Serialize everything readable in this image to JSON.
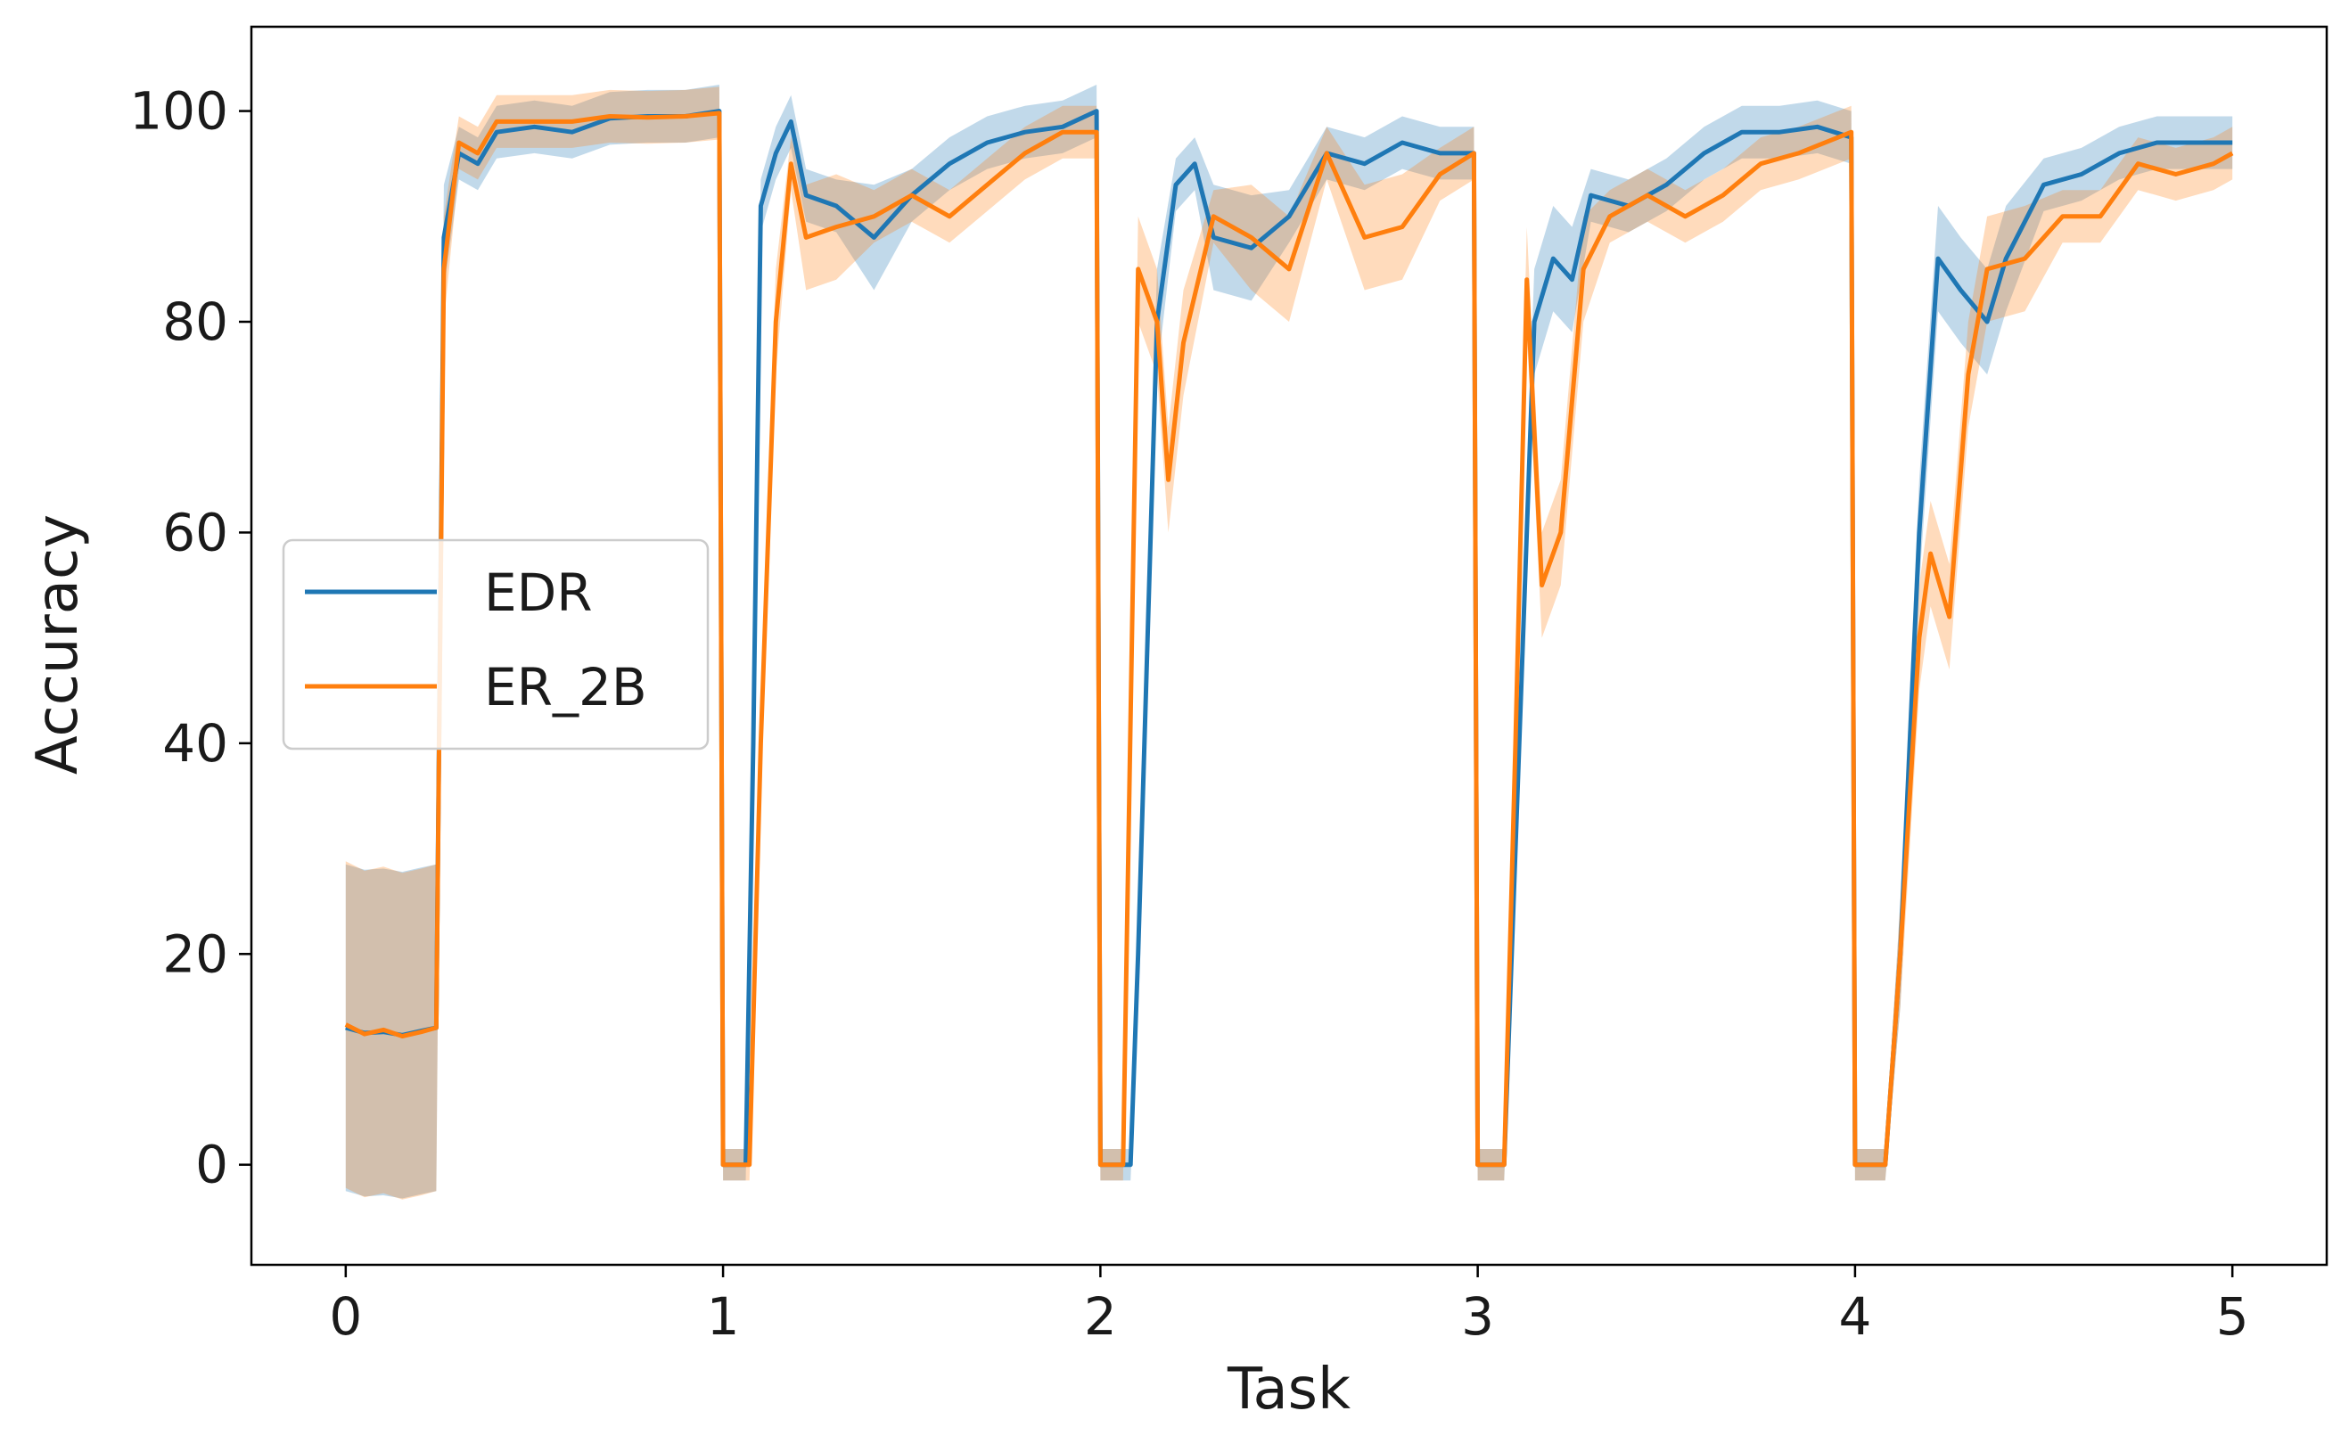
{
  "chart_data": {
    "type": "line",
    "title": "",
    "xlabel": "Task",
    "ylabel": "Accuracy",
    "xlim": [
      -0.25,
      5.25
    ],
    "ylim": [
      -9.5,
      108
    ],
    "xticks": [
      0,
      1,
      2,
      3,
      4,
      5
    ],
    "xtick_labels": [
      "0",
      "1",
      "2",
      "3",
      "4",
      "5"
    ],
    "yticks": [
      0,
      20,
      40,
      60,
      80,
      100
    ],
    "ytick_labels": [
      "0",
      "20",
      "40",
      "60",
      "80",
      "100"
    ],
    "grid": false,
    "legend": {
      "placement": "center-left",
      "entries": [
        "EDR",
        "ER_2B"
      ]
    },
    "series": [
      {
        "name": "EDR",
        "color": "#1f77b4",
        "points": [
          [
            0,
            13
          ],
          [
            0.05,
            12.5
          ],
          [
            0.1,
            12.6
          ],
          [
            0.15,
            12.3
          ],
          [
            0.2,
            12.7
          ],
          [
            0.24,
            13
          ],
          [
            0.26,
            88
          ],
          [
            0.3,
            96
          ],
          [
            0.35,
            95
          ],
          [
            0.4,
            98
          ],
          [
            0.5,
            98.5
          ],
          [
            0.6,
            98
          ],
          [
            0.7,
            99.3
          ],
          [
            0.8,
            99.5
          ],
          [
            0.9,
            99.5
          ],
          [
            0.99,
            100
          ],
          [
            1.0,
            0
          ],
          [
            1.06,
            0
          ],
          [
            1.08,
            40
          ],
          [
            1.1,
            91
          ],
          [
            1.14,
            96
          ],
          [
            1.18,
            99
          ],
          [
            1.22,
            92
          ],
          [
            1.3,
            91
          ],
          [
            1.4,
            88
          ],
          [
            1.5,
            92
          ],
          [
            1.6,
            95
          ],
          [
            1.7,
            97
          ],
          [
            1.8,
            98
          ],
          [
            1.9,
            98.5
          ],
          [
            1.99,
            100
          ],
          [
            2.0,
            0
          ],
          [
            2.08,
            0
          ],
          [
            2.1,
            20
          ],
          [
            2.15,
            80
          ],
          [
            2.2,
            93
          ],
          [
            2.25,
            95
          ],
          [
            2.3,
            88
          ],
          [
            2.4,
            87
          ],
          [
            2.5,
            90
          ],
          [
            2.6,
            96
          ],
          [
            2.7,
            95
          ],
          [
            2.8,
            97
          ],
          [
            2.9,
            96
          ],
          [
            2.99,
            96
          ],
          [
            3.0,
            0
          ],
          [
            3.07,
            0
          ],
          [
            3.1,
            30
          ],
          [
            3.15,
            80
          ],
          [
            3.2,
            86
          ],
          [
            3.25,
            84
          ],
          [
            3.3,
            92
          ],
          [
            3.4,
            91
          ],
          [
            3.5,
            93
          ],
          [
            3.6,
            96
          ],
          [
            3.7,
            98
          ],
          [
            3.8,
            98
          ],
          [
            3.9,
            98.5
          ],
          [
            3.99,
            97.5
          ],
          [
            4.0,
            0
          ],
          [
            4.08,
            0
          ],
          [
            4.12,
            20
          ],
          [
            4.17,
            60
          ],
          [
            4.22,
            86
          ],
          [
            4.28,
            83
          ],
          [
            4.35,
            80
          ],
          [
            4.4,
            86
          ],
          [
            4.5,
            93
          ],
          [
            4.6,
            94
          ],
          [
            4.7,
            96
          ],
          [
            4.8,
            97
          ],
          [
            4.9,
            97
          ],
          [
            5.0,
            97
          ]
        ]
      },
      {
        "name": "ER_2B",
        "color": "#ff7f0e",
        "points": [
          [
            0,
            13.3
          ],
          [
            0.05,
            12.4
          ],
          [
            0.1,
            12.8
          ],
          [
            0.15,
            12.2
          ],
          [
            0.2,
            12.6
          ],
          [
            0.24,
            13
          ],
          [
            0.26,
            85
          ],
          [
            0.3,
            97
          ],
          [
            0.35,
            96
          ],
          [
            0.4,
            99
          ],
          [
            0.5,
            99
          ],
          [
            0.6,
            99
          ],
          [
            0.7,
            99.5
          ],
          [
            0.8,
            99.4
          ],
          [
            0.9,
            99.5
          ],
          [
            0.99,
            99.8
          ],
          [
            1.0,
            0
          ],
          [
            1.07,
            0
          ],
          [
            1.1,
            40
          ],
          [
            1.14,
            80
          ],
          [
            1.18,
            95
          ],
          [
            1.22,
            88
          ],
          [
            1.3,
            89
          ],
          [
            1.4,
            90
          ],
          [
            1.5,
            92
          ],
          [
            1.6,
            90
          ],
          [
            1.7,
            93
          ],
          [
            1.8,
            96
          ],
          [
            1.9,
            98
          ],
          [
            1.99,
            98
          ],
          [
            2.0,
            0
          ],
          [
            2.06,
            0
          ],
          [
            2.1,
            85
          ],
          [
            2.15,
            80
          ],
          [
            2.18,
            65
          ],
          [
            2.22,
            78
          ],
          [
            2.3,
            90
          ],
          [
            2.4,
            88
          ],
          [
            2.5,
            85
          ],
          [
            2.6,
            96
          ],
          [
            2.7,
            88
          ],
          [
            2.8,
            89
          ],
          [
            2.9,
            94
          ],
          [
            2.99,
            96
          ],
          [
            3.0,
            0
          ],
          [
            3.07,
            0
          ],
          [
            3.1,
            40
          ],
          [
            3.13,
            84
          ],
          [
            3.17,
            55
          ],
          [
            3.22,
            60
          ],
          [
            3.28,
            85
          ],
          [
            3.35,
            90
          ],
          [
            3.45,
            92
          ],
          [
            3.55,
            90
          ],
          [
            3.65,
            92
          ],
          [
            3.75,
            95
          ],
          [
            3.85,
            96
          ],
          [
            3.99,
            98
          ],
          [
            4.0,
            0
          ],
          [
            4.08,
            0
          ],
          [
            4.12,
            20
          ],
          [
            4.17,
            50
          ],
          [
            4.2,
            58
          ],
          [
            4.25,
            52
          ],
          [
            4.3,
            75
          ],
          [
            4.35,
            85
          ],
          [
            4.45,
            86
          ],
          [
            4.55,
            90
          ],
          [
            4.65,
            90
          ],
          [
            4.75,
            95
          ],
          [
            4.85,
            94
          ],
          [
            4.95,
            95
          ],
          [
            5.0,
            96
          ]
        ]
      }
    ]
  }
}
